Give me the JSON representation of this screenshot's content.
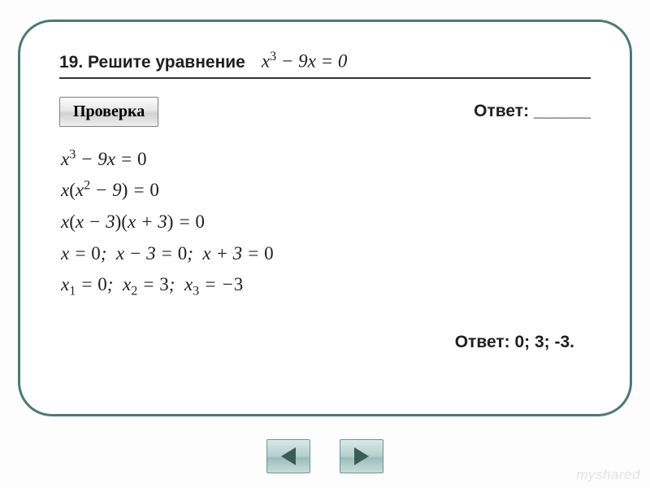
{
  "colors": {
    "card_border": "#4a7a76",
    "text": "#202020",
    "rule": "#333333",
    "nav_bg_top": "#d9e9e8",
    "nav_bg_bottom": "#c6dcda",
    "nav_border": "#6d9793",
    "arrow": "#3a5c59",
    "watermark": "#e3e3e3"
  },
  "fonts": {
    "ui": "Arial, sans-serif",
    "math": "Times New Roman, serif",
    "question_size_pt": 16,
    "formula_size_pt": 17
  },
  "question": {
    "number_label": "19. Решите уравнение",
    "formula_html": "<i>x</i><span class='sup'>3</span> − 9<i>x</i> = 0"
  },
  "check_label": "Проверка",
  "answer_blank": {
    "label": "Ответ:",
    "value": "______"
  },
  "solution_lines": [
    "<i>x</i><span class='sup'>3</span> − 9<i>x</i> = <span class='up'>0</span>",
    "<i>x</i><span class='up'>(</span><i>x</i><span class='sup'>2</span> − 9<span class='up'>)</span> = <span class='up'>0</span>",
    "<i>x</i><span class='up'>(</span><i>x</i> − 3<span class='up'>)(</span><i>x</i> + 3<span class='up'>)</span> = <span class='up'>0</span>",
    "<i>x</i> = <span class='up'>0</span>;&nbsp; <i>x</i> − 3 = <span class='up'>0</span>;&nbsp; <i>x</i> + 3 = <span class='up'>0</span>",
    "<i>x</i><span class='sub'>1</span> = <span class='up'>0</span>;&nbsp; <i>x</i><span class='sub'>2</span> = <span class='up'>3</span>;&nbsp; <i>x</i><span class='sub'>3</span> = −<span class='up'>3</span>"
  ],
  "final_answer": "Ответ: 0; 3; -3.",
  "nav": {
    "prev": "prev",
    "next": "next"
  },
  "watermark": "myshared"
}
